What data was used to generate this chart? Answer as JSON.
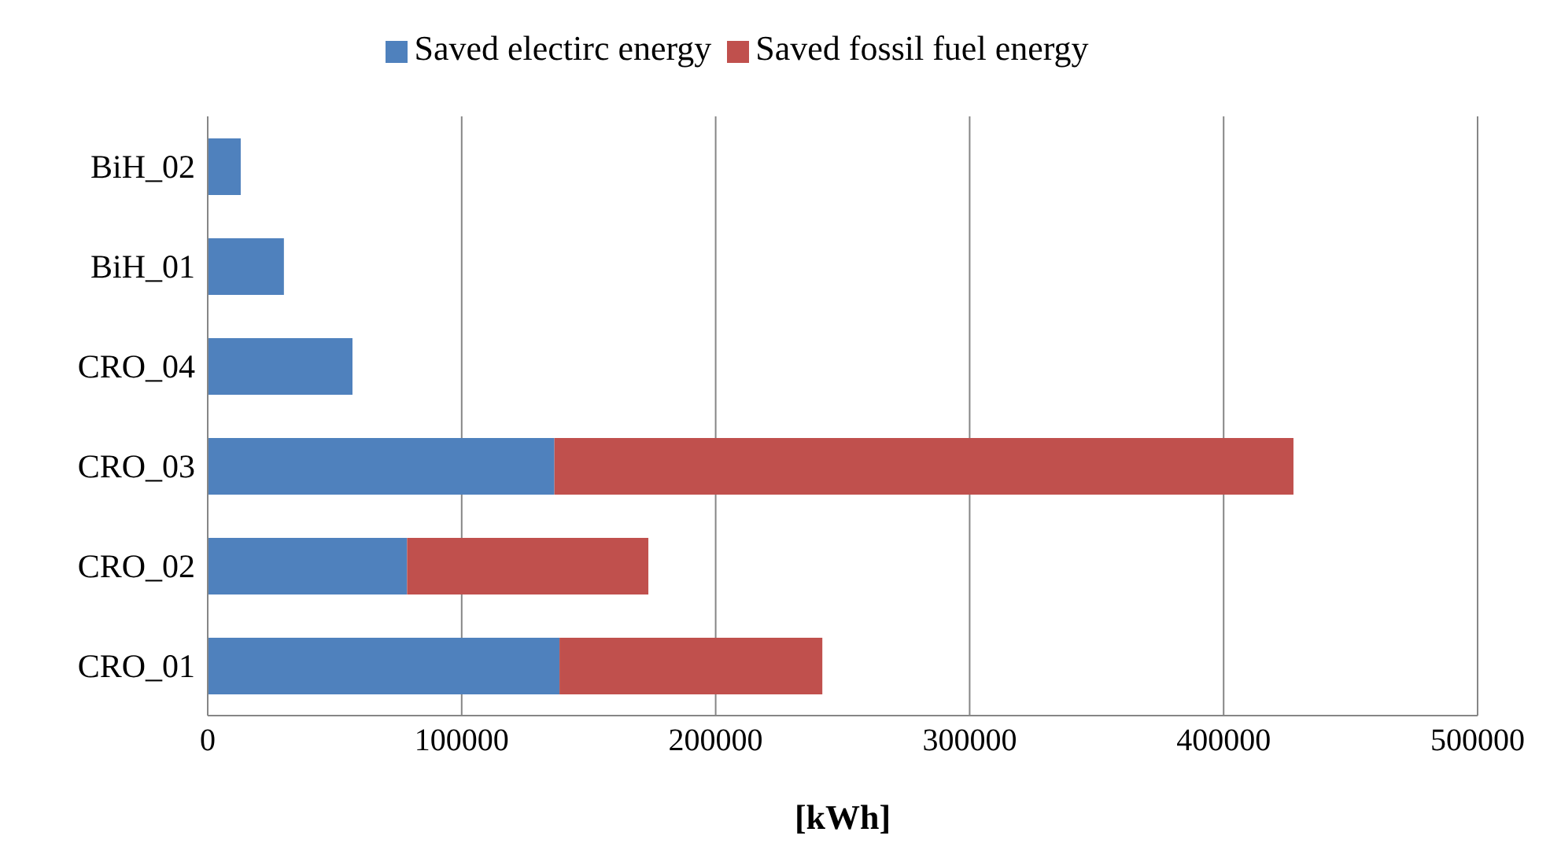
{
  "chart_data": {
    "type": "bar",
    "orientation": "horizontal",
    "stacked": true,
    "xlabel": "[kWh]",
    "categories": [
      "BiH_02",
      "BiH_01",
      "CRO_04",
      "CRO_03",
      "CRO_02",
      "CRO_01"
    ],
    "series": [
      {
        "name": "Saved electirc energy",
        "color": "#4f81bd",
        "values": [
          13000,
          30000,
          57000,
          136500,
          78500,
          138500
        ]
      },
      {
        "name": "Saved fossil fuel energy",
        "color": "#c0504d",
        "values": [
          null,
          null,
          null,
          291000,
          95000,
          103500
        ]
      }
    ],
    "xlim": [
      0,
      500000
    ],
    "xticks": [
      0,
      100000,
      200000,
      300000,
      400000,
      500000
    ],
    "grid": "x",
    "legend": "top"
  }
}
